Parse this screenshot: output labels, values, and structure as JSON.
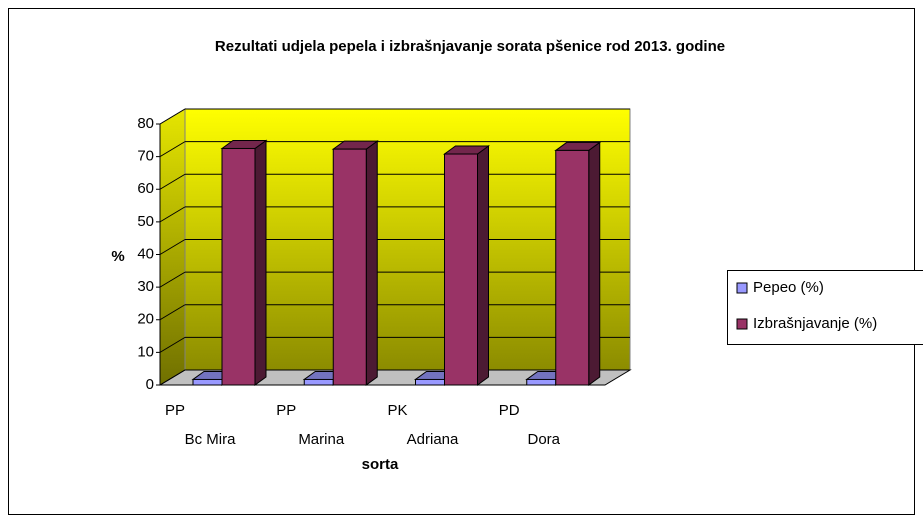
{
  "chart_data": {
    "type": "bar3d",
    "title": "Rezultati udjela pepela i izbrašnjavanje sorata pšenice rod 2013. godine",
    "x_label": "sorta",
    "y_label": "%",
    "categories": [
      [
        "PP",
        "Bc Mira"
      ],
      [
        "PP",
        "Marina"
      ],
      [
        "PK",
        "Adriana"
      ],
      [
        "PD",
        "Dora"
      ]
    ],
    "series": [
      {
        "name": "Pepeo (%)",
        "color": "#9999ff",
        "values": [
          1.7,
          1.7,
          1.7,
          1.7
        ]
      },
      {
        "name": "Izbrašnjavanje (%)",
        "color": "#993366",
        "values": [
          72.5,
          72.3,
          70.8,
          71.9
        ]
      }
    ],
    "ylim": [
      0,
      80
    ],
    "yticks": [
      0,
      10,
      20,
      30,
      40,
      50,
      60,
      70,
      80
    ],
    "grid": true,
    "legend": "right"
  }
}
